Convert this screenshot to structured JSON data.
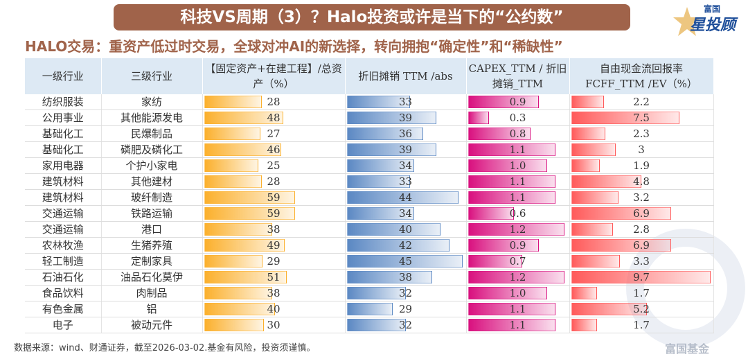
{
  "title": "科技VS周期（3）？Halo投资或许是当下的“公约数”",
  "logo": {
    "line1": "富国",
    "line2": "星投顾"
  },
  "subtitle": "HALO交易：重资产低过时交易，全球对冲AI的新选择，转向拥抱“确定性”和“稀缺性”",
  "watermark": "富国基金",
  "columns": [
    "一级行业",
    "三级行业",
    "【固定资产+在建工程】/总资产（%）",
    "折旧摊销 TTM /abs",
    "CAPEX_TTM / 折旧摊销_TTM",
    "自由现金流回报率 FCFF_TTM /EV（%）"
  ],
  "bar_colors": [
    "#fbb02d",
    "#5b88c3",
    "#d9117f",
    "#ff5a5a"
  ],
  "rows": [
    {
      "l1": "纺织服装",
      "l3": "家纺",
      "fa": "28",
      "da": "33",
      "capex": "0.9",
      "fcf": "2.2"
    },
    {
      "l1": "公用事业",
      "l3": "其他能源发电",
      "fa": "48",
      "da": "39",
      "capex": "0.3",
      "fcf": "7.5"
    },
    {
      "l1": "基础化工",
      "l3": "民爆制品",
      "fa": "27",
      "da": "36",
      "capex": "0.8",
      "fcf": "2.3"
    },
    {
      "l1": "基础化工",
      "l3": "磷肥及磷化工",
      "fa": "46",
      "da": "39",
      "capex": "1.1",
      "fcf": "3"
    },
    {
      "l1": "家用电器",
      "l3": "个护小家电",
      "fa": "25",
      "da": "34",
      "capex": "1.0",
      "fcf": "1.9"
    },
    {
      "l1": "建筑材料",
      "l3": "其他建材",
      "fa": "28",
      "da": "33",
      "capex": "1.1",
      "fcf": "4.8"
    },
    {
      "l1": "建筑材料",
      "l3": "玻纤制造",
      "fa": "59",
      "da": "44",
      "capex": "1.1",
      "fcf": "3.2"
    },
    {
      "l1": "交通运输",
      "l3": "铁路运输",
      "fa": "59",
      "da": "34",
      "capex": "0.6",
      "fcf": "6.9"
    },
    {
      "l1": "交通运输",
      "l3": "港口",
      "fa": "38",
      "da": "40",
      "capex": "1.2",
      "fcf": "2.8"
    },
    {
      "l1": "农林牧渔",
      "l3": "生猪养殖",
      "fa": "49",
      "da": "42",
      "capex": "0.9",
      "fcf": "6.9"
    },
    {
      "l1": "轻工制造",
      "l3": "定制家具",
      "fa": "29",
      "da": "45",
      "capex": "0.7",
      "fcf": "3.3"
    },
    {
      "l1": "石油石化",
      "l3": "油品石化莫伊",
      "fa": "51",
      "da": "38",
      "capex": "1.2",
      "fcf": "9.7"
    },
    {
      "l1": "食品饮料",
      "l3": "肉制品",
      "fa": "38",
      "da": "32",
      "capex": "1.0",
      "fcf": "1.7"
    },
    {
      "l1": "有色金属",
      "l3": "铝",
      "fa": "40",
      "da": "29",
      "capex": "1.1",
      "fcf": "5.2"
    },
    {
      "l1": "电子",
      "l3": "被动元件",
      "fa": "30",
      "da": "32",
      "capex": "1.1",
      "fcf": "1.7"
    }
  ],
  "footer": "数据来源：wind、财通证券，截至2026-03-02.基金有风险，投资须谨慎。"
}
